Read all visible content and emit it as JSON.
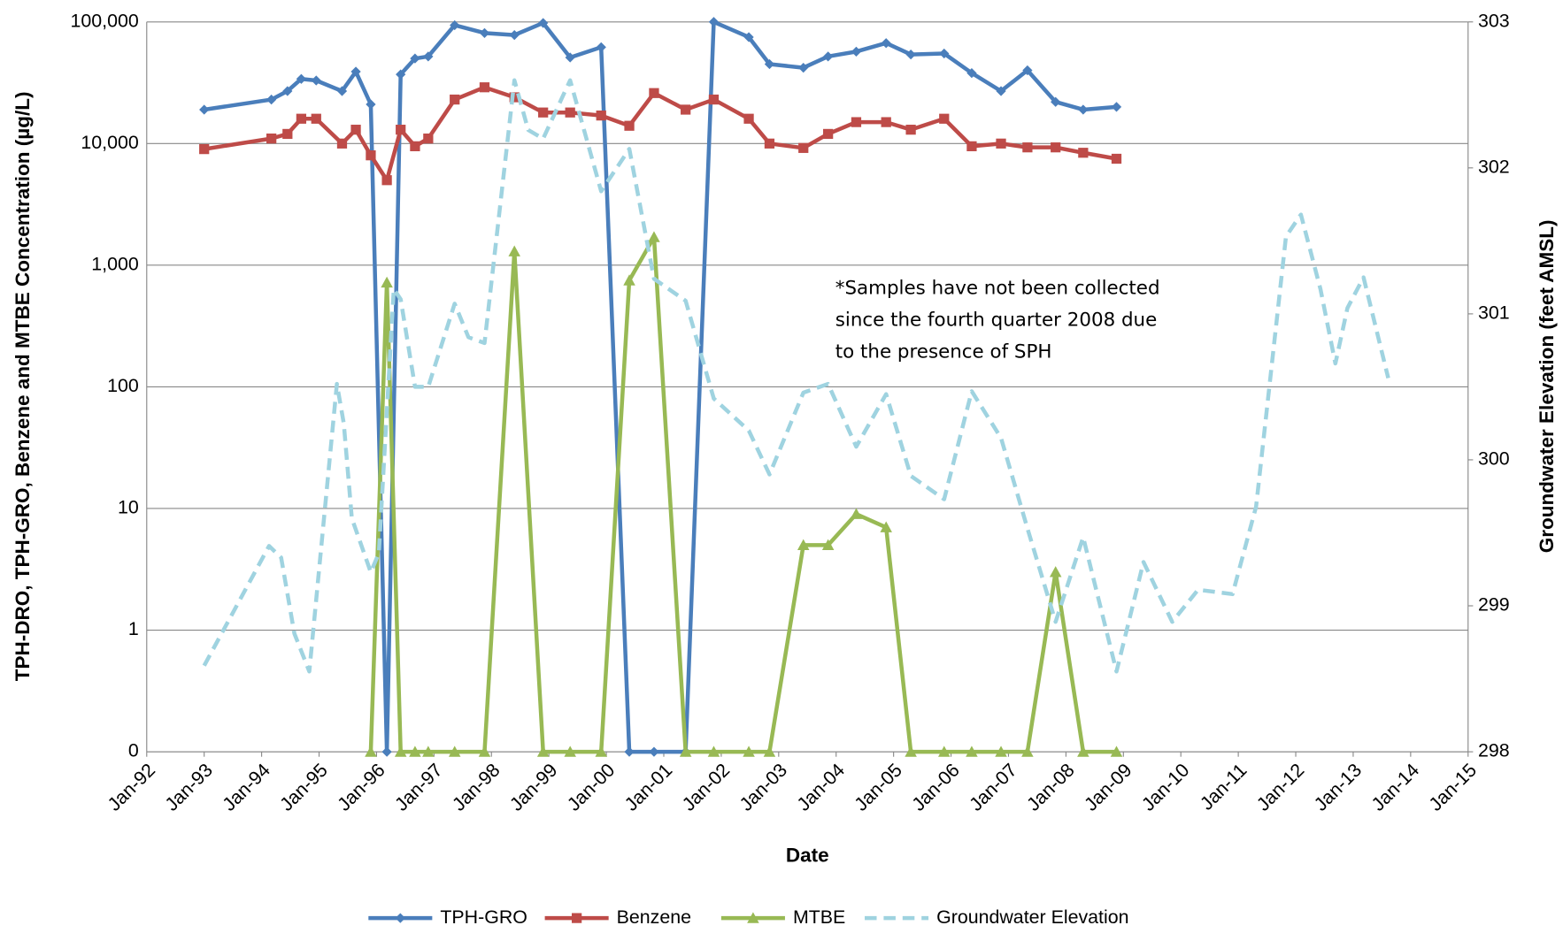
{
  "chart_data": {
    "type": "line",
    "x_label": "Date",
    "y_label": "TPH-DRO, TPH-GRO, Benzene and MTBE Concentration (µg/L)",
    "y2_label": "Groundwater Elevation (feet AMSL)",
    "annotation": [
      "*Samples have not been collected",
      "since the fourth quarter 2008 due",
      "to the presence of SPH"
    ],
    "ylog": true,
    "grid": true,
    "legend": "bottom",
    "xlim": [
      1992,
      2015
    ],
    "xticks": [
      {
        "value": 1992,
        "label": "Jan-92"
      },
      {
        "value": 1993,
        "label": "Jan-93"
      },
      {
        "value": 1994,
        "label": "Jan-94"
      },
      {
        "value": 1995,
        "label": "Jan-95"
      },
      {
        "value": 1996,
        "label": "Jan-96"
      },
      {
        "value": 1997,
        "label": "Jan-97"
      },
      {
        "value": 1998,
        "label": "Jan-98"
      },
      {
        "value": 1999,
        "label": "Jan-99"
      },
      {
        "value": 2000,
        "label": "Jan-00"
      },
      {
        "value": 2001,
        "label": "Jan-01"
      },
      {
        "value": 2002,
        "label": "Jan-02"
      },
      {
        "value": 2003,
        "label": "Jan-03"
      },
      {
        "value": 2004,
        "label": "Jan-04"
      },
      {
        "value": 2005,
        "label": "Jan-05"
      },
      {
        "value": 2006,
        "label": "Jan-06"
      },
      {
        "value": 2007,
        "label": "Jan-07"
      },
      {
        "value": 2008,
        "label": "Jan-08"
      },
      {
        "value": 2009,
        "label": "Jan-09"
      },
      {
        "value": 2010,
        "label": "Jan-10"
      },
      {
        "value": 2011,
        "label": "Jan-11"
      },
      {
        "value": 2012,
        "label": "Jan-12"
      },
      {
        "value": 2013,
        "label": "Jan-13"
      },
      {
        "value": 2014,
        "label": "Jan-14"
      },
      {
        "value": 2015,
        "label": "Jan-15"
      }
    ],
    "ylim": [
      0.1,
      100000
    ],
    "yticks": [
      {
        "value": 0.1,
        "label": "0"
      },
      1,
      10,
      100,
      {
        "value": 1000,
        "label": "1,000"
      },
      {
        "value": 10000,
        "label": "10,000"
      },
      {
        "value": 100000,
        "label": "100,000"
      }
    ],
    "y2lim": [
      298,
      303
    ],
    "y2ticks": [
      298,
      299,
      300,
      301,
      302,
      303
    ],
    "series": [
      {
        "name": "TPH-GRO",
        "color": "#4a7ebb",
        "marker": "diamond",
        "x": [
          1993.0,
          1994.17,
          1994.45,
          1994.69,
          1994.95,
          1995.4,
          1995.64,
          1995.9,
          1996.18,
          1996.42,
          1996.67,
          1996.9,
          1997.36,
          1997.88,
          1998.4,
          1998.9,
          1999.37,
          1999.91,
          2000.4,
          2000.83,
          2001.38,
          2001.87,
          2002.48,
          2002.84,
          2003.43,
          2003.86,
          2004.35,
          2004.87,
          2005.3,
          2005.88,
          2006.36,
          2006.87,
          2007.33,
          2007.82,
          2008.3,
          2008.88
        ],
        "values": [
          19000,
          23000,
          27000,
          34000,
          33000,
          27000,
          39000,
          21000,
          0.1,
          37000,
          50000,
          52000,
          94000,
          81000,
          78000,
          98000,
          51000,
          62000,
          0.1,
          0.1,
          0.1,
          100000,
          75000,
          45000,
          42000,
          52000,
          57000,
          67000,
          54000,
          55000,
          38000,
          27000,
          40000,
          22000,
          19000,
          20000
        ]
      },
      {
        "name": "Benzene",
        "color": "#be4b48",
        "marker": "square",
        "x": [
          1993.0,
          1994.17,
          1994.45,
          1994.69,
          1994.95,
          1995.4,
          1995.64,
          1995.9,
          1996.18,
          1996.42,
          1996.67,
          1996.9,
          1997.36,
          1997.88,
          1998.4,
          1998.9,
          1999.37,
          1999.91,
          2000.4,
          2000.83,
          2001.38,
          2001.87,
          2002.48,
          2002.84,
          2003.43,
          2003.86,
          2004.35,
          2004.87,
          2005.3,
          2005.88,
          2006.36,
          2006.87,
          2007.33,
          2007.82,
          2008.3,
          2008.88
        ],
        "values": [
          9000,
          11000,
          12000,
          16000,
          16000,
          10000,
          13000,
          8000,
          5000,
          13000,
          9500,
          11000,
          23000,
          29000,
          24000,
          18000,
          18000,
          17000,
          14000,
          26000,
          19000,
          23000,
          16000,
          10000,
          9200,
          12000,
          15000,
          15000,
          13000,
          16000,
          9500,
          10000,
          9300,
          9300,
          8400,
          7500
        ]
      },
      {
        "name": "MTBE",
        "color": "#98b954",
        "marker": "triangle",
        "x": [
          1995.9,
          1996.18,
          1996.42,
          1996.67,
          1996.9,
          1997.36,
          1997.88,
          1998.4,
          1998.9,
          1999.37,
          1999.91,
          2000.4,
          2000.83,
          2001.38,
          2001.87,
          2002.48,
          2002.84,
          2003.43,
          2003.86,
          2004.35,
          2004.87,
          2005.3,
          2005.88,
          2006.36,
          2006.87,
          2007.33,
          2007.82,
          2008.3,
          2008.88
        ],
        "values": [
          0.1,
          720,
          0.1,
          0.1,
          0.1,
          0.1,
          0.1,
          1300,
          0.1,
          0.1,
          0.1,
          750,
          1700,
          0.1,
          0.1,
          0.1,
          0.1,
          5,
          5,
          9,
          7,
          0.1,
          0.1,
          0.1,
          0.1,
          0.1,
          3,
          0.1,
          0.1
        ]
      },
      {
        "name": "Groundwater Elevation",
        "color": "#9fd3e0",
        "axis": "y2",
        "dashed": true,
        "x": [
          1993.0,
          1994.13,
          1994.34,
          1994.57,
          1994.83,
          1995.31,
          1995.43,
          1995.57,
          1995.9,
          1996.04,
          1996.3,
          1996.42,
          1996.67,
          1996.9,
          1997.36,
          1997.6,
          1997.88,
          1998.4,
          1998.64,
          1998.9,
          1999.37,
          1999.91,
          2000.4,
          2000.83,
          2001.38,
          2001.87,
          2002.48,
          2002.84,
          2003.43,
          2003.86,
          2004.35,
          2004.87,
          2005.3,
          2005.88,
          2006.36,
          2006.87,
          2007.33,
          2007.82,
          2008.3,
          2008.88,
          2009.35,
          2009.85,
          2010.3,
          2010.9,
          2011.31,
          2011.83,
          2012.09,
          2012.43,
          2012.69,
          2012.9,
          2013.18,
          2013.61
        ],
        "values": [
          298.59,
          299.41,
          299.33,
          298.81,
          298.55,
          300.52,
          300.25,
          299.6,
          299.23,
          299.36,
          301.17,
          301.1,
          300.5,
          300.5,
          301.07,
          300.84,
          300.8,
          302.6,
          302.26,
          302.2,
          302.6,
          301.84,
          302.13,
          301.24,
          301.09,
          300.42,
          300.2,
          299.9,
          300.46,
          300.52,
          300.09,
          300.45,
          299.89,
          299.73,
          300.47,
          300.15,
          299.53,
          298.89,
          299.47,
          298.55,
          299.3,
          298.89,
          299.11,
          299.08,
          299.68,
          301.53,
          301.68,
          301.17,
          300.66,
          301.04,
          301.25,
          300.56
        ]
      }
    ]
  }
}
